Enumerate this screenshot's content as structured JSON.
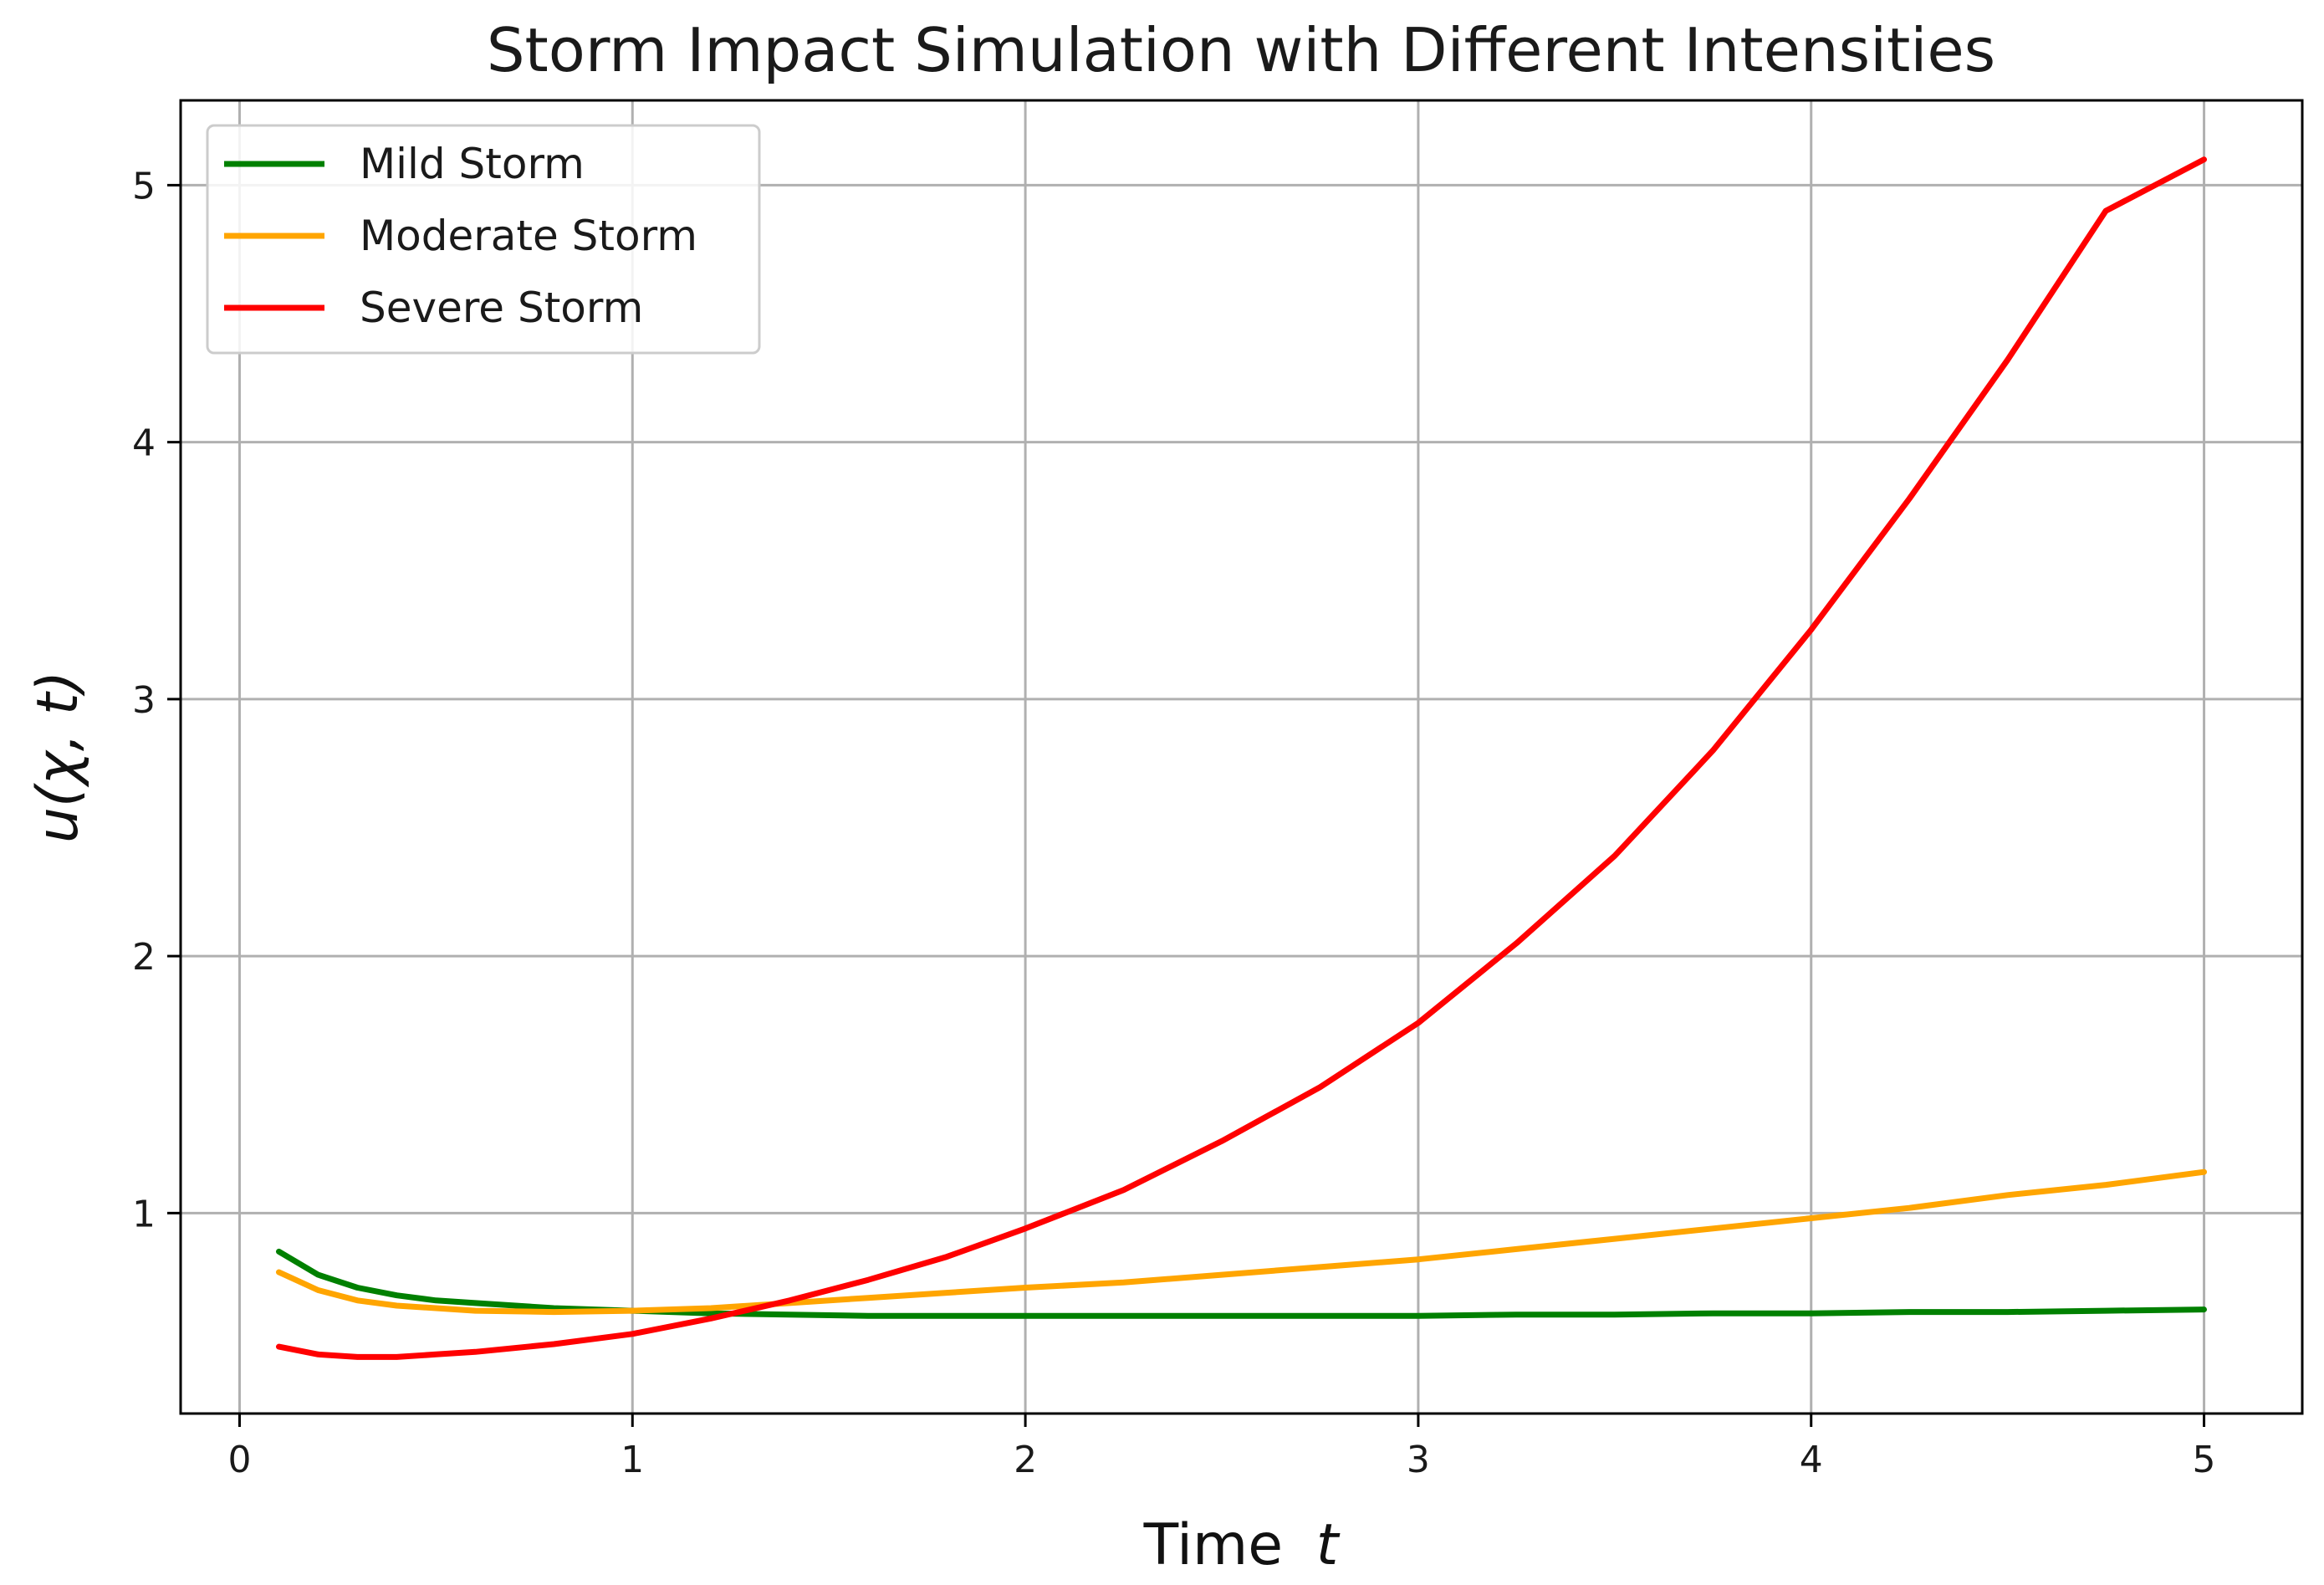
{
  "chart_data": {
    "type": "line",
    "title": "Storm Impact Simulation with Different Intensities",
    "xlabel": "Time t",
    "xlabel_parts": {
      "text": "Time",
      "var": "t"
    },
    "ylabel": "u(χ, t)",
    "xlim": [
      -0.15,
      5.25
    ],
    "ylim": [
      0.22,
      5.33
    ],
    "xticks": [
      0,
      1,
      2,
      3,
      4,
      5
    ],
    "xtick_labels": [
      "0",
      "1",
      "2",
      "3",
      "4",
      "5"
    ],
    "yticks": [
      1,
      2,
      3,
      4,
      5
    ],
    "ytick_labels": [
      "1",
      "2",
      "3",
      "4",
      "5"
    ],
    "grid": true,
    "legend_position": "upper-left",
    "x": [
      0.1,
      0.2,
      0.3,
      0.4,
      0.5,
      0.6,
      0.8,
      1.0,
      1.2,
      1.4,
      1.6,
      1.8,
      2.0,
      2.25,
      2.5,
      2.75,
      3.0,
      3.25,
      3.5,
      3.75,
      4.0,
      4.25,
      4.5,
      4.75,
      5.0
    ],
    "series": [
      {
        "name": "Mild Storm",
        "color": "#008000",
        "values": [
          0.85,
          0.76,
          0.71,
          0.68,
          0.66,
          0.65,
          0.63,
          0.62,
          0.61,
          0.605,
          0.6,
          0.6,
          0.6,
          0.6,
          0.6,
          0.6,
          0.6,
          0.605,
          0.605,
          0.61,
          0.61,
          0.615,
          0.615,
          0.62,
          0.625
        ]
      },
      {
        "name": "Moderate Storm",
        "color": "#FFA500",
        "values": [
          0.77,
          0.7,
          0.66,
          0.64,
          0.63,
          0.62,
          0.615,
          0.62,
          0.63,
          0.65,
          0.67,
          0.69,
          0.71,
          0.73,
          0.76,
          0.79,
          0.82,
          0.86,
          0.9,
          0.94,
          0.98,
          1.02,
          1.07,
          1.11,
          1.16
        ]
      },
      {
        "name": "Severe Storm",
        "color": "#FF0000",
        "values": [
          0.48,
          0.45,
          0.44,
          0.44,
          0.45,
          0.46,
          0.49,
          0.53,
          0.59,
          0.66,
          0.74,
          0.83,
          0.94,
          1.09,
          1.28,
          1.49,
          1.74,
          2.05,
          2.39,
          2.8,
          3.27,
          3.78,
          4.32,
          4.9,
          5.1
        ]
      }
    ]
  }
}
